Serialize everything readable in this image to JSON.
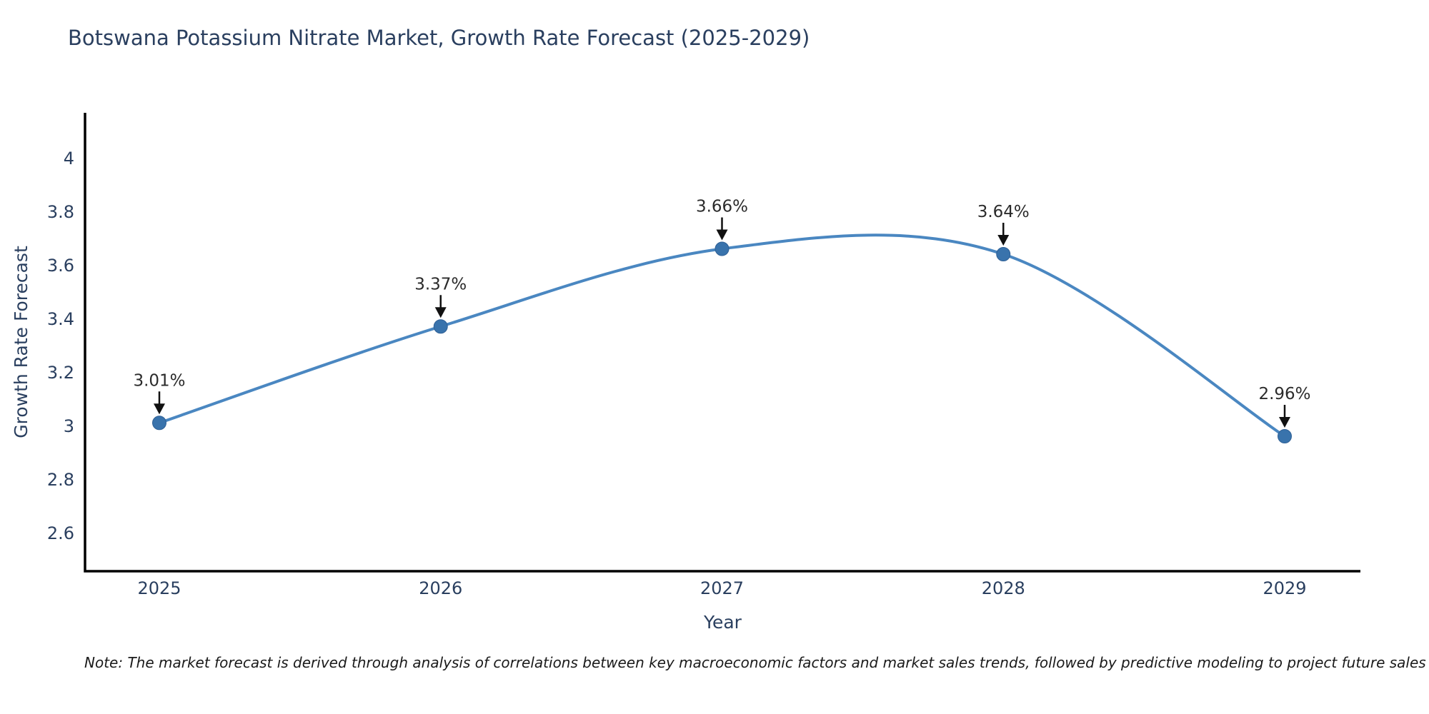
{
  "title": "Botswana Potassium Nitrate Market, Growth Rate Forecast (2025-2029)",
  "note": "Note: The market forecast is derived through analysis of correlations between key macroeconomic factors and market sales trends, followed by predictive modeling to project future sales",
  "chart_data": {
    "type": "line",
    "title": "Botswana Potassium Nitrate Market, Growth Rate Forecast (2025-2029)",
    "xlabel": "Year",
    "ylabel": "Growth Rate Forecast",
    "categories": [
      "2025",
      "2026",
      "2027",
      "2028",
      "2029"
    ],
    "x": [
      2025,
      2026,
      2027,
      2028,
      2029
    ],
    "values": [
      3.01,
      3.37,
      3.66,
      3.64,
      2.96
    ],
    "point_labels": [
      "3.01%",
      "3.37%",
      "3.66%",
      "3.64%",
      "2.96%"
    ],
    "ytick_values": [
      2.6,
      2.8,
      3,
      3.2,
      3.4,
      3.6,
      3.8,
      4
    ],
    "ytick_labels": [
      "2.6",
      "2.8",
      "3",
      "3.2",
      "3.4",
      "3.6",
      "3.8",
      "4"
    ],
    "ylim": [
      2.46,
      4.17
    ],
    "grid": false,
    "legend_position": "none",
    "line_style": "spline-smoothed",
    "annotation_style": "value label with downward black arrow onto marker",
    "colors": {
      "line": "#4a87c1",
      "marker_fill": "#3973ac",
      "marker_edge": "#2f6096",
      "axis_line": "#000000",
      "tick_text": "#2a3f5f",
      "title_text": "#2a3f5f",
      "annotation_text": "#2b2b2b",
      "arrow": "#111111",
      "background": "#ffffff"
    }
  }
}
